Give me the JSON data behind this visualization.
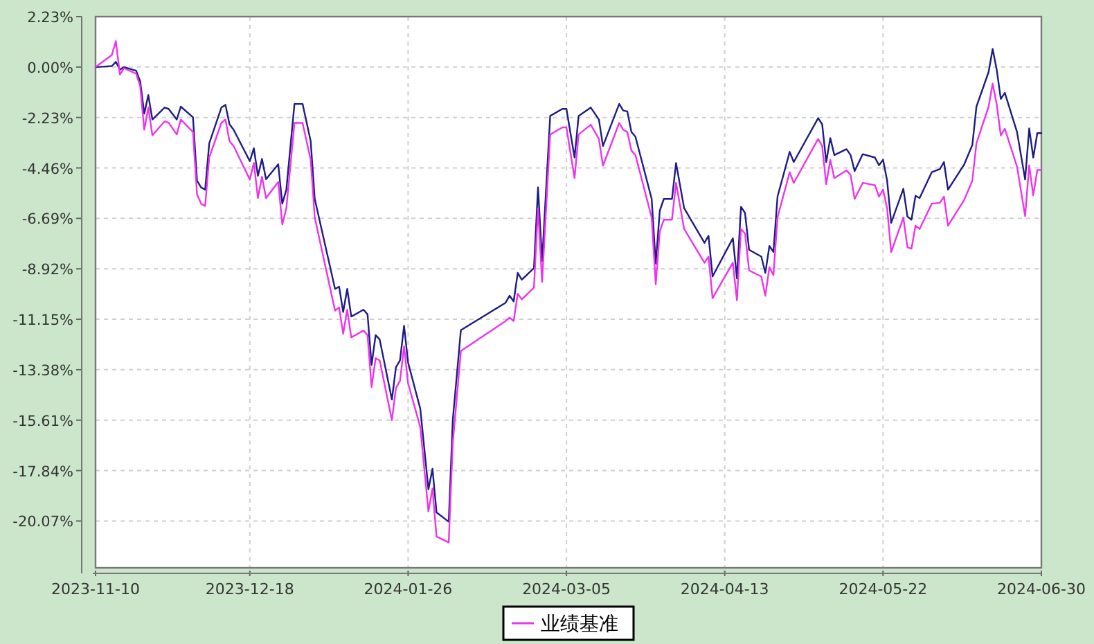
{
  "chart_data": {
    "type": "line",
    "x": [
      "2023-11-10",
      "2023-11-14",
      "2023-11-15",
      "2023-11-16",
      "2023-11-17",
      "2023-11-20",
      "2023-11-21",
      "2023-11-22",
      "2023-11-23",
      "2023-11-24",
      "2023-11-27",
      "2023-11-28",
      "2023-11-30",
      "2023-12-01",
      "2023-12-04",
      "2023-12-05",
      "2023-12-06",
      "2023-12-07",
      "2023-12-08",
      "2023-12-11",
      "2023-12-12",
      "2023-12-13",
      "2023-12-14",
      "2023-12-18",
      "2023-12-19",
      "2023-12-20",
      "2023-12-21",
      "2023-12-22",
      "2023-12-25",
      "2023-12-26",
      "2023-12-27",
      "2023-12-29",
      "2023-12-31",
      "2024-01-02",
      "2024-01-03",
      "2024-01-08",
      "2024-01-09",
      "2024-01-10",
      "2024-01-11",
      "2024-01-12",
      "2024-01-15",
      "2024-01-16",
      "2024-01-17",
      "2024-01-18",
      "2024-01-19",
      "2024-01-22",
      "2024-01-23",
      "2024-01-24",
      "2024-01-25",
      "2024-01-26",
      "2024-01-29",
      "2024-01-31",
      "2024-02-01",
      "2024-02-02",
      "2024-02-05",
      "2024-02-06",
      "2024-02-08",
      "2024-02-19",
      "2024-02-20",
      "2024-02-21",
      "2024-02-22",
      "2024-02-23",
      "2024-02-26",
      "2024-02-27",
      "2024-02-28",
      "2024-03-01",
      "2024-03-04",
      "2024-03-05",
      "2024-03-07",
      "2024-03-08",
      "2024-03-11",
      "2024-03-13",
      "2024-03-14",
      "2024-03-18",
      "2024-03-19",
      "2024-03-20",
      "2024-03-21",
      "2024-03-22",
      "2024-03-26",
      "2024-03-27",
      "2024-03-28",
      "2024-03-29",
      "2024-03-31",
      "2024-04-01",
      "2024-04-03",
      "2024-04-08",
      "2024-04-09",
      "2024-04-10",
      "2024-04-15",
      "2024-04-16",
      "2024-04-17",
      "2024-04-18",
      "2024-04-19",
      "2024-04-22",
      "2024-04-23",
      "2024-04-24",
      "2024-04-25",
      "2024-04-26",
      "2024-04-29",
      "2024-04-30",
      "2024-05-06",
      "2024-05-07",
      "2024-05-08",
      "2024-05-09",
      "2024-05-10",
      "2024-05-13",
      "2024-05-14",
      "2024-05-15",
      "2024-05-17",
      "2024-05-20",
      "2024-05-21",
      "2024-05-22",
      "2024-05-23",
      "2024-05-24",
      "2024-05-27",
      "2024-05-28",
      "2024-05-29",
      "2024-05-30",
      "2024-05-31",
      "2024-06-03",
      "2024-06-05",
      "2024-06-06",
      "2024-06-07",
      "2024-06-11",
      "2024-06-13",
      "2024-06-14",
      "2024-06-17",
      "2024-06-18",
      "2024-06-19",
      "2024-06-20",
      "2024-06-21",
      "2024-06-24",
      "2024-06-26",
      "2024-06-27",
      "2024-06-28",
      "2024-06-29",
      "2024-06-30"
    ],
    "series": [
      {
        "color": "#1c1c84",
        "values": [
          0,
          0.04,
          0.23,
          -0.12,
          0,
          -0.16,
          -0.63,
          -2.06,
          -1.24,
          -2.32,
          -1.79,
          -1.85,
          -2.32,
          -1.75,
          -2.22,
          -5.02,
          -5.32,
          -5.42,
          -3.38,
          -1.79,
          -1.67,
          -2.53,
          -2.77,
          -4.16,
          -3.59,
          -4.81,
          -4.06,
          -4.96,
          -4.3,
          -6.04,
          -5.42,
          -1.63,
          -1.63,
          -3.28,
          -5.83,
          -9.81,
          -9.71,
          -10.83,
          -9.81,
          -11.03,
          -10.73,
          -10.93,
          -13.17,
          -11.85,
          -12.05,
          -14.7,
          -13.27,
          -12.97,
          -11.44,
          -13.07,
          -15.11,
          -18.67,
          -17.76,
          -19.69,
          -20.1,
          -15.61,
          -11.63,
          -10.42,
          -10.11,
          -10.36,
          -9.1,
          -9.4,
          -8.89,
          -5.32,
          -8.58,
          -2.16,
          -1.85,
          -1.85,
          -4.0,
          -2.16,
          -1.79,
          -2.32,
          -3.49,
          -1.63,
          -1.92,
          -1.96,
          -2.87,
          -3.08,
          -5.83,
          -8.69,
          -6.35,
          -5.83,
          -5.83,
          -4.24,
          -6.24,
          -7.77,
          -7.46,
          -9.26,
          -7.57,
          -9.34,
          -6.18,
          -6.45,
          -8.08,
          -8.38,
          -9.1,
          -7.91,
          -8.17,
          -5.73,
          -3.75,
          -4.2,
          -2.26,
          -2.53,
          -4.2,
          -3.14,
          -3.89,
          -3.63,
          -3.89,
          -4.6,
          -3.85,
          -4.0,
          -4.34,
          -4.1,
          -5.02,
          -6.89,
          -5.38,
          -6.61,
          -6.75,
          -5.69,
          -5.79,
          -4.65,
          -4.51,
          -4.2,
          -5.42,
          -4.3,
          -3.44,
          -1.75,
          -0.22,
          0.8,
          -0.12,
          -1.41,
          -1.14,
          -2.87,
          -4.97,
          -2.71,
          -4.0,
          -2.92,
          -2.92
        ]
      },
      {
        "name": "业绩基准",
        "color": "#ee33ee",
        "values": [
          0,
          0.53,
          1.15,
          -0.33,
          -0.05,
          -0.29,
          -0.84,
          -2.77,
          -1.79,
          -3.02,
          -2.4,
          -2.46,
          -2.98,
          -2.32,
          -2.87,
          -5.63,
          -6.04,
          -6.14,
          -4.0,
          -2.47,
          -2.32,
          -3.28,
          -3.49,
          -4.97,
          -4.24,
          -5.79,
          -4.85,
          -5.79,
          -5.08,
          -6.96,
          -6.24,
          -2.47,
          -2.47,
          -4.1,
          -6.65,
          -10.77,
          -10.63,
          -11.79,
          -10.73,
          -11.95,
          -11.65,
          -11.85,
          -14.15,
          -12.87,
          -12.97,
          -15.61,
          -14.19,
          -13.88,
          -12.35,
          -13.99,
          -15.92,
          -19.65,
          -18.63,
          -20.76,
          -21.02,
          -16.63,
          -12.55,
          -11.23,
          -11.08,
          -11.23,
          -10.02,
          -10.27,
          -9.75,
          -6.24,
          -9.5,
          -2.98,
          -2.67,
          -2.67,
          -4.91,
          -2.98,
          -2.55,
          -3.18,
          -4.36,
          -2.47,
          -2.77,
          -2.87,
          -3.69,
          -3.89,
          -6.65,
          -9.61,
          -7.26,
          -6.75,
          -6.75,
          -5.12,
          -7.16,
          -8.65,
          -8.38,
          -10.22,
          -8.65,
          -10.32,
          -7.16,
          -7.36,
          -8.99,
          -9.26,
          -10.11,
          -8.85,
          -9.2,
          -6.65,
          -4.65,
          -5.12,
          -3.18,
          -3.49,
          -5.18,
          -4.1,
          -4.91,
          -4.57,
          -4.77,
          -5.83,
          -5.12,
          -5.22,
          -5.73,
          -5.42,
          -6.24,
          -8.18,
          -6.65,
          -7.97,
          -8.03,
          -7.01,
          -7.16,
          -6.04,
          -6.0,
          -5.73,
          -7.01,
          -5.87,
          -5.02,
          -3.38,
          -1.75,
          -0.73,
          -1.65,
          -3.02,
          -2.73,
          -4.4,
          -6.59,
          -4.34,
          -5.67,
          -4.55,
          -4.55
        ]
      }
    ],
    "xlim": [
      "2023-11-10",
      "2024-06-30"
    ],
    "xticks": [
      {
        "value": "2023-11-10",
        "label": "2023-11-10"
      },
      {
        "value": "2023-12-18",
        "label": "2023-12-18"
      },
      {
        "value": "2024-01-26",
        "label": "2024-01-26"
      },
      {
        "value": "2024-03-05",
        "label": "2024-03-05"
      },
      {
        "value": "2024-04-13",
        "label": "2024-04-13"
      },
      {
        "value": "2024-05-22",
        "label": "2024-05-22"
      },
      {
        "value": "2024-06-30",
        "label": "2024-06-30"
      }
    ],
    "ylim": [
      -22.14,
      2.23
    ],
    "yticks": [
      {
        "value": 2.23,
        "label": "2.23%"
      },
      {
        "value": 0,
        "label": "0.00%"
      },
      {
        "value": -2.23,
        "label": "-2.23%"
      },
      {
        "value": -4.46,
        "label": "-4.46%"
      },
      {
        "value": -6.69,
        "label": "-6.69%"
      },
      {
        "value": -8.92,
        "label": "-8.92%"
      },
      {
        "value": -11.15,
        "label": "-11.15%"
      },
      {
        "value": -13.38,
        "label": "-13.38%"
      },
      {
        "value": -15.61,
        "label": "-15.61%"
      },
      {
        "value": -17.84,
        "label": "-17.84%"
      },
      {
        "value": -20.07,
        "label": "-20.07%"
      }
    ],
    "grid": true,
    "legend": "bottom",
    "line_style": "solid",
    "marker": "none"
  }
}
